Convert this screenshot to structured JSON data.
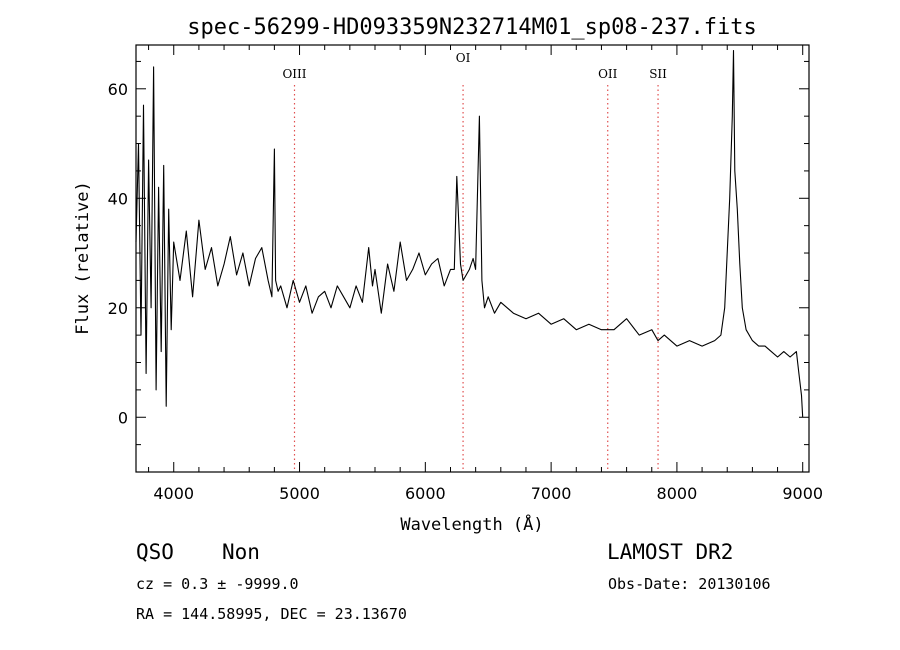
{
  "chart_data": {
    "type": "line",
    "title": "spec-56299-HD093359N232714M01_sp08-237.fits",
    "xlabel": "Wavelength (Å)",
    "ylabel": "Flux (relative)",
    "xlim": [
      3700,
      9050
    ],
    "ylim": [
      -10,
      68
    ],
    "xticks": [
      4000,
      5000,
      6000,
      7000,
      8000,
      9000
    ],
    "yticks": [
      0,
      20,
      40,
      60
    ],
    "grid": false,
    "line_color": "#000000",
    "marker_color": "#e05050",
    "emission_lines": [
      {
        "label": "OIII",
        "x": 4960
      },
      {
        "label": "OI",
        "x": 6300
      },
      {
        "label": "OII",
        "x": 7450
      },
      {
        "label": "SII",
        "x": 7850
      }
    ],
    "series": [
      {
        "x": [
          3700,
          3720,
          3740,
          3760,
          3780,
          3800,
          3820,
          3840,
          3860,
          3880,
          3900,
          3920,
          3940,
          3960,
          3980,
          4000,
          4050,
          4100,
          4150,
          4200,
          4250,
          4300,
          4350,
          4400,
          4450,
          4500,
          4550,
          4600,
          4650,
          4700,
          4750,
          4780,
          4800,
          4810,
          4830,
          4850,
          4900,
          4950,
          5000,
          5050,
          5100,
          5150,
          5200,
          5250,
          5300,
          5350,
          5400,
          5450,
          5500,
          5550,
          5580,
          5600,
          5650,
          5700,
          5750,
          5800,
          5850,
          5900,
          5950,
          6000,
          6050,
          6100,
          6150,
          6200,
          6230,
          6250,
          6280,
          6300,
          6350,
          6380,
          6400,
          6430,
          6450,
          6470,
          6500,
          6550,
          6600,
          6700,
          6800,
          6900,
          7000,
          7100,
          7200,
          7300,
          7400,
          7500,
          7600,
          7700,
          7800,
          7850,
          7900,
          8000,
          8100,
          8200,
          8300,
          8350,
          8380,
          8400,
          8420,
          8440,
          8450,
          8460,
          8480,
          8500,
          8520,
          8550,
          8600,
          8650,
          8700,
          8750,
          8800,
          8850,
          8900,
          8950,
          8970,
          8990,
          9000
        ],
        "y": [
          32,
          50,
          15,
          57,
          8,
          47,
          20,
          64,
          5,
          42,
          12,
          46,
          2,
          38,
          16,
          32,
          25,
          34,
          22,
          36,
          27,
          31,
          24,
          28,
          33,
          26,
          30,
          24,
          29,
          31,
          25,
          22,
          49,
          25,
          23,
          24,
          20,
          25,
          21,
          24,
          19,
          22,
          23,
          20,
          24,
          22,
          20,
          24,
          21,
          31,
          24,
          27,
          19,
          28,
          23,
          32,
          25,
          27,
          30,
          26,
          28,
          29,
          24,
          27,
          27,
          44,
          28,
          25,
          27,
          29,
          27,
          55,
          25,
          20,
          22,
          19,
          21,
          19,
          18,
          19,
          17,
          18,
          16,
          17,
          16,
          16,
          18,
          15,
          16,
          14,
          15,
          13,
          14,
          13,
          14,
          15,
          20,
          30,
          40,
          55,
          67,
          45,
          38,
          28,
          20,
          16,
          14,
          13,
          13,
          12,
          11,
          12,
          11,
          12,
          8,
          4,
          0
        ]
      }
    ]
  },
  "footer": {
    "class_label": "QSO",
    "subclass_label": "Non",
    "cz_line": "cz = 0.3 ± -9999.0",
    "radec_line": "RA = 144.58995, DEC =  23.13670",
    "survey": "LAMOST DR2",
    "obs_date": "Obs-Date: 20130106"
  }
}
